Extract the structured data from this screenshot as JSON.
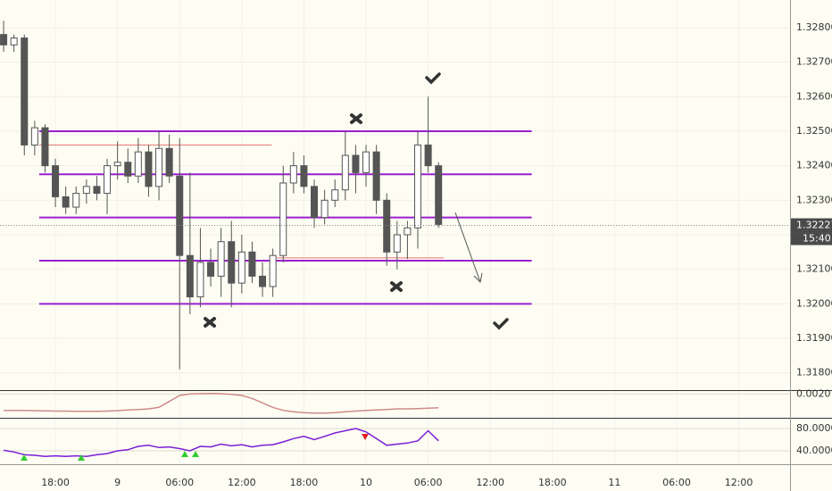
{
  "chart_data": [
    {
      "type": "candlestick",
      "x": [
        13,
        14,
        15,
        16,
        17,
        18,
        19,
        20,
        21,
        22,
        23,
        24,
        25,
        26,
        27,
        28,
        29,
        30,
        31,
        32,
        33,
        34,
        35,
        36,
        37,
        38,
        39,
        40,
        41,
        42,
        43,
        44,
        45,
        46,
        47,
        48,
        49,
        50,
        51,
        52,
        53,
        54,
        55
      ],
      "open": [
        1.3278,
        1.3275,
        1.3277,
        1.3246,
        1.3251,
        1.324,
        1.3231,
        1.3228,
        1.3232,
        1.3234,
        1.3232,
        1.324,
        1.3241,
        1.3237,
        1.3244,
        1.3234,
        1.3245,
        1.3237,
        1.3214,
        1.3202,
        1.3212,
        1.3208,
        1.3218,
        1.3206,
        1.3215,
        1.3208,
        1.3205,
        1.3214,
        1.3235,
        1.324,
        1.3234,
        1.3225,
        1.323,
        1.3233,
        1.3243,
        1.3238,
        1.3244,
        1.323,
        1.3215,
        1.322,
        1.3222,
        1.3246,
        1.324
      ],
      "high": [
        1.3282,
        1.3278,
        1.3278,
        1.3253,
        1.3252,
        1.3242,
        1.3234,
        1.3234,
        1.3236,
        1.3237,
        1.3242,
        1.3247,
        1.3245,
        1.3248,
        1.3246,
        1.325,
        1.3249,
        1.3248,
        1.3238,
        1.3222,
        1.3216,
        1.3222,
        1.3224,
        1.322,
        1.3218,
        1.3212,
        1.3216,
        1.324,
        1.3244,
        1.3243,
        1.3236,
        1.3233,
        1.3236,
        1.325,
        1.3246,
        1.3246,
        1.3246,
        1.3232,
        1.3224,
        1.3224,
        1.325,
        1.326,
        1.3241
      ],
      "low": [
        1.3273,
        1.3273,
        1.3243,
        1.3243,
        1.3238,
        1.3228,
        1.3226,
        1.3226,
        1.3229,
        1.323,
        1.3226,
        1.3236,
        1.3235,
        1.3235,
        1.3231,
        1.323,
        1.3235,
        1.3181,
        1.3197,
        1.3199,
        1.3205,
        1.3202,
        1.3199,
        1.3203,
        1.3206,
        1.3202,
        1.3202,
        1.3212,
        1.3232,
        1.3232,
        1.3222,
        1.3223,
        1.3228,
        1.323,
        1.3232,
        1.3234,
        1.3226,
        1.3211,
        1.321,
        1.3213,
        1.3216,
        1.3238,
        1.3222
      ],
      "close": [
        1.3275,
        1.3277,
        1.3246,
        1.3251,
        1.324,
        1.3231,
        1.3228,
        1.3232,
        1.3234,
        1.3232,
        1.324,
        1.3241,
        1.3237,
        1.3244,
        1.3234,
        1.3245,
        1.3237,
        1.3214,
        1.3202,
        1.3212,
        1.3208,
        1.3218,
        1.3206,
        1.3215,
        1.3208,
        1.3205,
        1.3214,
        1.3235,
        1.324,
        1.3234,
        1.3225,
        1.323,
        1.3233,
        1.3243,
        1.3238,
        1.3244,
        1.323,
        1.3215,
        1.322,
        1.3222,
        1.3246,
        1.324,
        1.3223
      ],
      "up_color": "#ffffff",
      "down_color": "#555555",
      "wick_color": "#555555",
      "xlim": [
        12.65,
        88.95
      ],
      "xticks": [
        {
          "value": 18,
          "label": "18:00"
        },
        {
          "value": 24,
          "label": "9"
        },
        {
          "value": 30,
          "label": "06:00"
        },
        {
          "value": 36,
          "label": "12:00"
        },
        {
          "value": 42,
          "label": "18:00"
        },
        {
          "value": 48,
          "label": "10"
        },
        {
          "value": 54,
          "label": "06:00"
        },
        {
          "value": 60,
          "label": "12:00"
        },
        {
          "value": 66,
          "label": "18:00"
        },
        {
          "value": 72,
          "label": "11"
        },
        {
          "value": 78,
          "label": "06:00"
        },
        {
          "value": 84,
          "label": "12:00"
        }
      ],
      "ylim": [
        1.3175,
        1.3288
      ],
      "yticks": [
        {
          "value": 1.318,
          "label": "1.31800"
        },
        {
          "value": 1.319,
          "label": "1.31900"
        },
        {
          "value": 1.32,
          "label": "1.32000"
        },
        {
          "value": 1.321,
          "label": "1.32100"
        },
        {
          "value": 1.322,
          "label": "1.32200"
        },
        {
          "value": 1.323,
          "label": "1.32300"
        },
        {
          "value": 1.324,
          "label": "1.32400"
        },
        {
          "value": 1.325,
          "label": "1.32500"
        },
        {
          "value": 1.326,
          "label": "1.32600"
        },
        {
          "value": 1.327,
          "label": "1.32700"
        },
        {
          "value": 1.328,
          "label": "1.32800"
        }
      ],
      "levels": [
        {
          "value": 1.325,
          "x": [
            16.44,
            64.0
          ],
          "color": "#9b1fd1"
        },
        {
          "value": 1.32375,
          "x": [
            16.44,
            64.0
          ],
          "color": "#9b1fd1"
        },
        {
          "value": 1.3225,
          "x": [
            16.44,
            64.0
          ],
          "color": "#9b1fd1"
        },
        {
          "value": 1.32125,
          "x": [
            16.44,
            64.0
          ],
          "color": "#9b1fd1"
        },
        {
          "value": 1.32,
          "x": [
            16.44,
            64.0
          ],
          "color": "#9b1fd1"
        },
        {
          "value": 1.3246,
          "x": [
            16.44,
            38.9
          ],
          "color": "#e57373"
        },
        {
          "value": 1.32133,
          "x": [
            39.4,
            55.5
          ],
          "color": "#e57373"
        }
      ],
      "last_price": {
        "value": 1.32227,
        "label": "1.32227"
      },
      "countdown": "15:40"
    },
    {
      "type": "line",
      "x": [
        13,
        14,
        15,
        16,
        17,
        18,
        19,
        20,
        21,
        22,
        23,
        24,
        25,
        26,
        27,
        28,
        29,
        30,
        31,
        32,
        33,
        34,
        35,
        36,
        37,
        38,
        39,
        40,
        41,
        42,
        43,
        44,
        45,
        46,
        47,
        48,
        49,
        50,
        51,
        52,
        53,
        54,
        55
      ],
      "values": [
        0.0009,
        0.0009,
        0.0009,
        0.00088,
        0.00086,
        0.00085,
        0.00085,
        0.00084,
        0.00083,
        0.00083,
        0.00085,
        0.00088,
        0.00092,
        0.00095,
        0.001,
        0.0011,
        0.0015,
        0.0019,
        0.002,
        0.00202,
        0.00203,
        0.00202,
        0.00198,
        0.0019,
        0.0017,
        0.0014,
        0.0011,
        0.0009,
        0.0008,
        0.00075,
        0.00072,
        0.00072,
        0.00075,
        0.0008,
        0.00085,
        0.0009,
        0.00092,
        0.00095,
        0.001,
        0.001,
        0.00102,
        0.00105,
        0.00108
      ],
      "color": "#d08a8a",
      "xlim": [
        12.65,
        88.95
      ],
      "ylim": [
        0.0004,
        0.0022
      ],
      "yticks": [
        {
          "value": 0.002,
          "label": "0.0020"
        }
      ]
    },
    {
      "type": "line",
      "x": [
        13,
        14,
        15,
        16,
        17,
        18,
        19,
        20,
        21,
        22,
        23,
        24,
        25,
        26,
        27,
        28,
        29,
        30,
        31,
        32,
        33,
        34,
        35,
        36,
        37,
        38,
        39,
        40,
        41,
        42,
        43,
        44,
        45,
        46,
        47,
        48,
        49,
        50,
        51,
        52,
        53,
        54,
        55
      ],
      "values": [
        41,
        38,
        33,
        32,
        30,
        31,
        30,
        31,
        30,
        33,
        35,
        40,
        42,
        48,
        50,
        46,
        47,
        44,
        40,
        48,
        47,
        52,
        49,
        51,
        47,
        50,
        51,
        56,
        62,
        66,
        60,
        66,
        72,
        76,
        80,
        74,
        62,
        50,
        52,
        54,
        58,
        76,
        58
      ],
      "color": "#7b1fd6",
      "xlim": [
        12.65,
        88.95
      ],
      "ylim": [
        16,
        97.6
      ],
      "yticks": [
        {
          "value": 80,
          "label": "80.0000"
        },
        {
          "value": 40,
          "label": "40.0000"
        }
      ]
    }
  ]
}
